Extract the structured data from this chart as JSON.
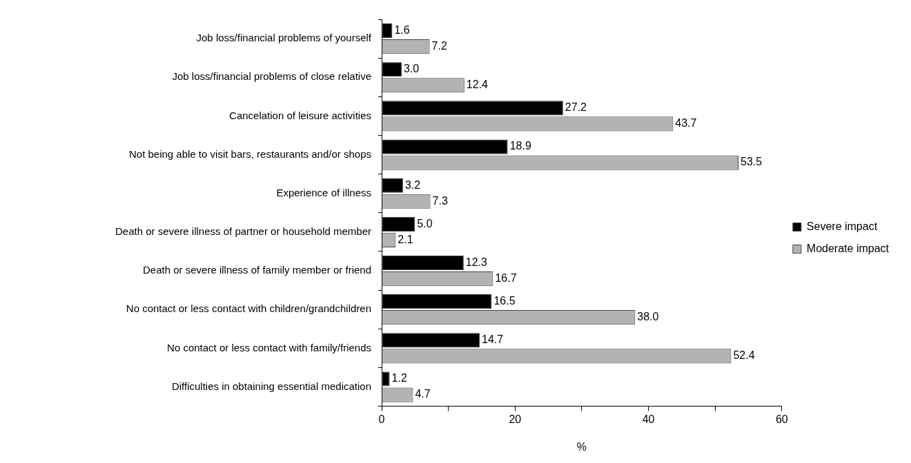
{
  "chart_data": {
    "type": "bar",
    "orientation": "horizontal",
    "xlabel": "%",
    "categories": [
      "Job loss/financial problems of yourself",
      "Job loss/financial problems of close relative",
      "Cancelation of leisure activities",
      "Not being able to visit bars, restaurants and/or shops",
      "Experience of illness",
      "Death or severe illness of partner or household member",
      "Death or severe illness of family member or friend",
      "No contact or less contact with children/grandchildren",
      "No contact or less contact with family/friends",
      "Difficulties in obtaining essential medication"
    ],
    "series": [
      {
        "name": "Severe impact",
        "color": "#000000",
        "values": [
          1.6,
          3.0,
          27.2,
          18.9,
          3.2,
          5.0,
          12.3,
          16.5,
          14.7,
          1.2
        ],
        "value_labels": [
          "1.6",
          "3.0",
          "27.2",
          "18.9",
          "3.2",
          "5.0",
          "12.3",
          "16.5",
          "14.7",
          "1.2"
        ]
      },
      {
        "name": "Moderate impact",
        "color": "#b3b3b3",
        "values": [
          7.2,
          12.4,
          43.7,
          53.5,
          7.3,
          2.1,
          16.7,
          38.0,
          52.4,
          4.7
        ],
        "value_labels": [
          "7.2",
          "12.4",
          "43.7",
          "53.5",
          "7.3",
          "2.1",
          "16.7",
          "38.0",
          "52.4",
          "4.7"
        ]
      }
    ],
    "xlim": [
      0,
      60
    ],
    "xticks": [
      0,
      {
        "value": 10,
        "label": null
      },
      20,
      {
        "value": 30,
        "label": null
      },
      40,
      {
        "value": 50,
        "label": null
      },
      60
    ],
    "grid": false,
    "legend": "right"
  }
}
